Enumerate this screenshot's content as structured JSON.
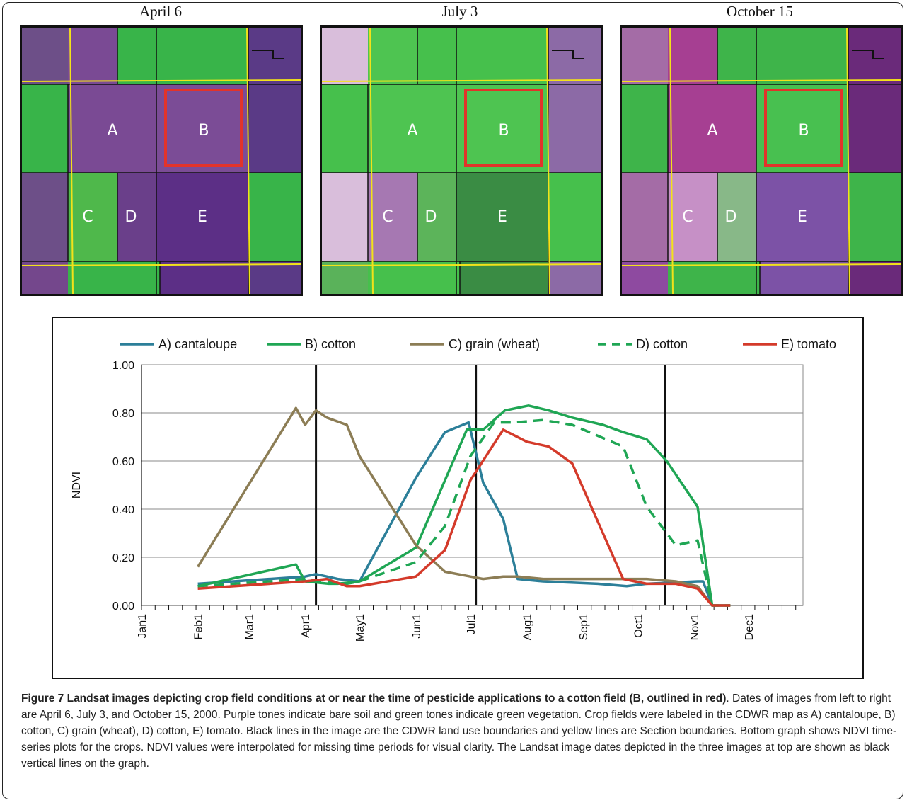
{
  "panels": [
    {
      "title": "April 6",
      "colors": {
        "bg": "#6a3f86",
        "a": "#7a4a94",
        "b": "#7b4c96",
        "c": "#4fb84b",
        "d": "#6a3f8a",
        "e": "#5c2f86",
        "green": "#38b449",
        "topleft": "#6d4f88",
        "right": "#5a3a86",
        "strip": "#74478c"
      },
      "labels": [
        "A",
        "B",
        "C",
        "D",
        "E"
      ]
    },
    {
      "title": "July 3",
      "colors": {
        "bg": "#5b8c6a",
        "a": "#4ec451",
        "b": "#4ec451",
        "c": "#a678b2",
        "d": "#5cb45a",
        "e": "#3a8c44",
        "green": "#46c04c",
        "topleft": "#d9bedb",
        "right": "#8c6aa6",
        "strip": "#5ab25a"
      },
      "labels": [
        "A",
        "B",
        "C",
        "D",
        "E"
      ]
    },
    {
      "title": "October 15",
      "colors": {
        "bg": "#8a4890",
        "a": "#a63f92",
        "b": "#48c050",
        "c": "#c690c6",
        "d": "#88b888",
        "e": "#7c52a6",
        "green": "#3eb44a",
        "topleft": "#a46ca6",
        "right": "#6a2a7a",
        "strip": "#8e4aa0"
      },
      "labels": [
        "A",
        "B",
        "C",
        "D",
        "E"
      ]
    }
  ],
  "chart_data": {
    "type": "line",
    "ylabel": "NDVI",
    "xlabel": "",
    "ylim": [
      0,
      1
    ],
    "y_ticks": [
      "0.00",
      "0.20",
      "0.40",
      "0.60",
      "0.80",
      "1.00"
    ],
    "x_tick_labels": [
      "Jan1",
      "Feb1",
      "Mar1",
      "Apr1",
      "May1",
      "Jun1",
      "Jul1",
      "Aug1",
      "Sep1",
      "Oct1",
      "Nov1",
      "Dec1"
    ],
    "x_tick_days": [
      1,
      32,
      60,
      91,
      121,
      152,
      182,
      213,
      244,
      274,
      305,
      335
    ],
    "x_range_days": [
      1,
      365
    ],
    "grid": "horizontal",
    "legend_placement": "top",
    "vertical_markers_days": [
      97,
      185,
      289
    ],
    "series": [
      {
        "name": "A) cantaloupe",
        "color": "#2c7f99",
        "dash": false,
        "x": [
          32,
          91,
          97,
          109,
          121,
          152,
          168,
          181,
          189,
          200,
          208,
          222,
          252,
          268,
          279,
          307,
          310,
          315,
          325
        ],
        "y": [
          0.09,
          0.12,
          0.13,
          0.11,
          0.1,
          0.53,
          0.72,
          0.76,
          0.51,
          0.36,
          0.11,
          0.1,
          0.09,
          0.08,
          0.09,
          0.1,
          0.1,
          0.0,
          0.0
        ]
      },
      {
        "name": "B) cotton",
        "color": "#1fa654",
        "dash": false,
        "x": [
          32,
          86,
          91,
          104,
          109,
          121,
          152,
          180,
          189,
          201,
          214,
          225,
          238,
          255,
          266,
          279,
          290,
          307,
          315,
          325
        ],
        "y": [
          0.08,
          0.17,
          0.1,
          0.09,
          0.09,
          0.1,
          0.24,
          0.73,
          0.73,
          0.81,
          0.83,
          0.81,
          0.78,
          0.75,
          0.72,
          0.69,
          0.6,
          0.41,
          0.0,
          0.0
        ]
      },
      {
        "name": "C) grain (wheat)",
        "color": "#8c7d55",
        "dash": false,
        "x": [
          32,
          86,
          91,
          97,
          103,
          114,
          121,
          152,
          168,
          182,
          189,
          200,
          208,
          222,
          255,
          279,
          295,
          307,
          315
        ],
        "y": [
          0.16,
          0.82,
          0.75,
          0.81,
          0.78,
          0.75,
          0.62,
          0.25,
          0.14,
          0.12,
          0.11,
          0.12,
          0.12,
          0.11,
          0.11,
          0.11,
          0.1,
          0.08,
          0.0
        ]
      },
      {
        "name": "D) cotton",
        "color": "#1fa654",
        "dash": true,
        "x": [
          32,
          91,
          103,
          114,
          121,
          152,
          168,
          182,
          195,
          206,
          222,
          238,
          266,
          279,
          295,
          307,
          315,
          325
        ],
        "y": [
          0.08,
          0.11,
          0.1,
          0.09,
          0.1,
          0.18,
          0.33,
          0.62,
          0.76,
          0.76,
          0.77,
          0.75,
          0.66,
          0.41,
          0.25,
          0.27,
          0.0,
          0.0
        ]
      },
      {
        "name": "E) tomato",
        "color": "#d43a2a",
        "dash": false,
        "x": [
          32,
          91,
          103,
          114,
          121,
          152,
          168,
          182,
          200,
          213,
          225,
          238,
          266,
          279,
          295,
          307,
          315,
          325
        ],
        "y": [
          0.07,
          0.1,
          0.11,
          0.08,
          0.08,
          0.12,
          0.23,
          0.52,
          0.73,
          0.68,
          0.66,
          0.59,
          0.11,
          0.09,
          0.09,
          0.07,
          0.0,
          0.0
        ]
      }
    ]
  },
  "caption": {
    "bold": "Figure 7 Landsat images depicting crop field conditions at or near the time of pesticide applications to a cotton field (B, outlined in red)",
    "text": ". Dates of images from left to right are April 6, July 3, and October 15, 2000. Purple tones indicate bare soil and green tones indicate green vegetation. Crop fields were labeled in the CDWR map as A) cantaloupe, B) cotton, C) grain (wheat), D) cotton, E) tomato. Black lines in the image are the CDWR land use boundaries and yellow lines are Section boundaries. Bottom graph shows NDVI time-series plots for the crops. NDVI values were interpolated for missing time periods for visual clarity. The Landsat image dates depicted in the three images at top are shown as black vertical lines on the graph."
  }
}
